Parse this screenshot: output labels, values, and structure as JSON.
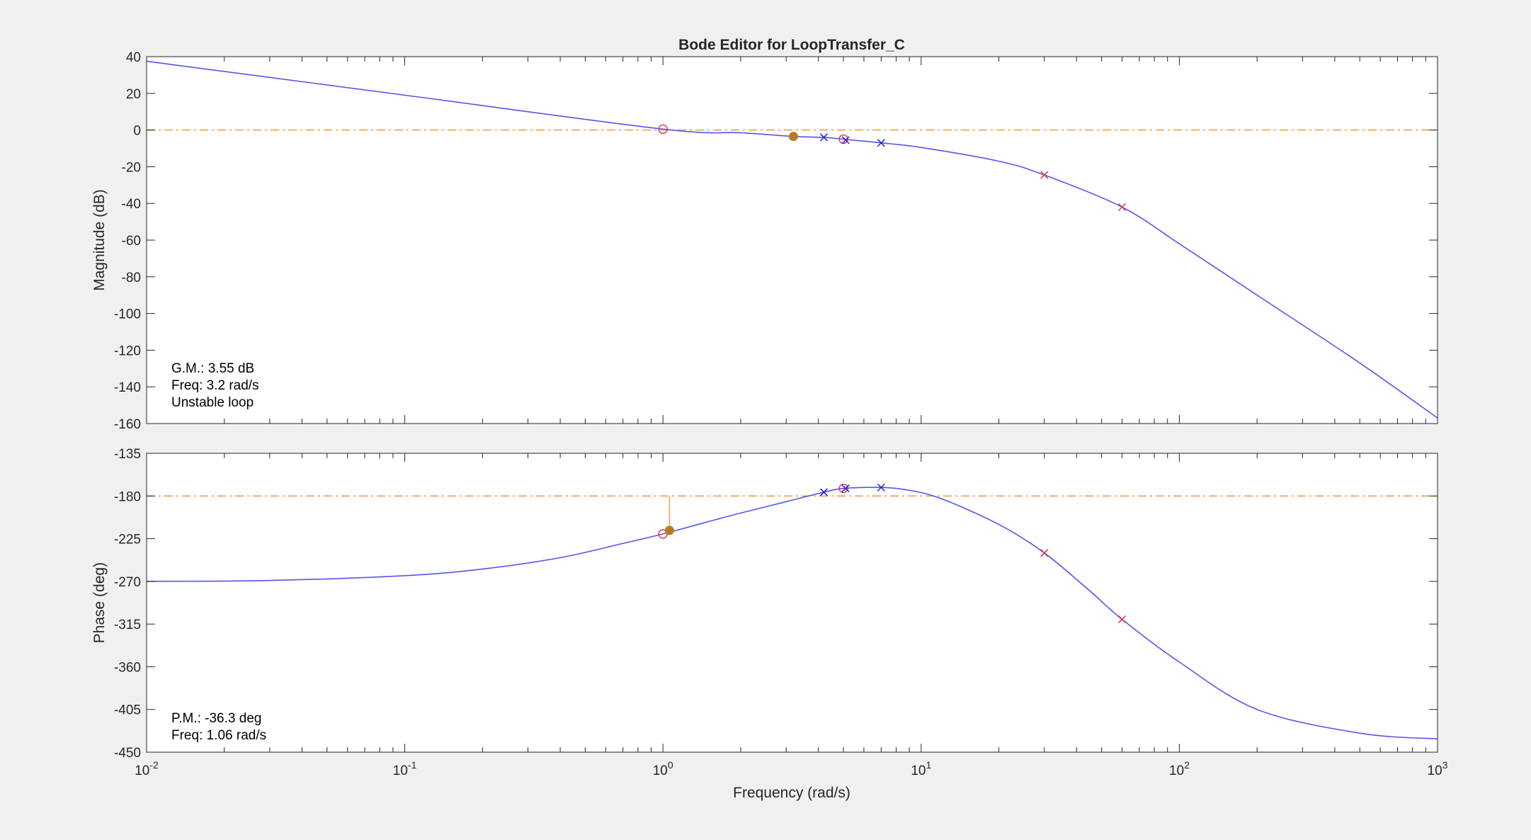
{
  "title": "Bode Editor for LoopTransfer_C",
  "xlabel": "Frequency (rad/s)",
  "colors": {
    "background": "#f0f0f0",
    "axes_bg": "#ffffff",
    "axis": "#262626",
    "curve": "#5555ee",
    "reference": "#eda040",
    "pole_zero_red": "#e0304a",
    "pole_zero_blue": "#1f1fd6",
    "marker_fill": "#b87a1e"
  },
  "chart_data": [
    {
      "type": "line",
      "panel": "magnitude",
      "title": "Bode Editor for LoopTransfer_C",
      "ylabel": "Magnitude (dB)",
      "xlabel": "",
      "xscale": "log",
      "xlim": [
        0.01,
        1000
      ],
      "ylim": [
        -160,
        40
      ],
      "yticks": [
        40,
        20,
        0,
        -20,
        -40,
        -60,
        -80,
        -100,
        -120,
        -140,
        -160
      ],
      "grid": false,
      "series": [
        {
          "x": [
            0.01,
            0.1,
            1,
            2,
            3.2,
            4.2,
            5,
            7,
            10,
            20,
            30,
            60,
            100,
            200,
            500,
            1000
          ],
          "y": [
            37.5,
            19,
            0.5,
            -1.5,
            -3.5,
            -4,
            -5,
            -7,
            -9.5,
            -17,
            -24.5,
            -42,
            -62,
            -90,
            -127,
            -157
          ]
        }
      ],
      "reference_line": {
        "y": 0,
        "style": "dash-dot"
      },
      "markers": [
        {
          "kind": "zero",
          "color": "red",
          "x": 1,
          "y": 0.5
        },
        {
          "kind": "zero",
          "color": "red",
          "x": 5,
          "y": -5
        },
        {
          "kind": "pole",
          "color": "blue",
          "x": 4.2,
          "y": -4
        },
        {
          "kind": "pole",
          "color": "blue",
          "x": 5.1,
          "y": -5.5
        },
        {
          "kind": "pole",
          "color": "blue",
          "x": 7,
          "y": -7
        },
        {
          "kind": "pole",
          "color": "red",
          "x": 30,
          "y": -24.5
        },
        {
          "kind": "pole",
          "color": "red",
          "x": 60,
          "y": -42
        },
        {
          "kind": "margin",
          "color": "orange",
          "x": 3.2,
          "y": -3.5
        }
      ],
      "annotation": [
        "G.M.: 3.55 dB",
        "Freq: 3.2 rad/s",
        "Unstable loop"
      ]
    },
    {
      "type": "line",
      "panel": "phase",
      "ylabel": "Phase (deg)",
      "xlabel": "Frequency (rad/s)",
      "xscale": "log",
      "xlim": [
        0.01,
        1000
      ],
      "ylim": [
        -450,
        -135
      ],
      "yticks": [
        -135,
        -180,
        -225,
        -270,
        -315,
        -360,
        -405,
        -450
      ],
      "xtick_labels": [
        "10^-2",
        "10^-1",
        "10^0",
        "10^1",
        "10^2",
        "10^3"
      ],
      "grid": false,
      "series": [
        {
          "x": [
            0.01,
            0.03,
            0.1,
            0.2,
            0.4,
            0.7,
            1,
            1.5,
            2,
            3,
            4.2,
            5,
            7,
            9,
            12,
            20,
            30,
            45,
            60,
            100,
            200,
            500,
            1000
          ],
          "y": [
            -270,
            -269,
            -264,
            -257,
            -245,
            -230,
            -220,
            -207,
            -198,
            -186,
            -176,
            -172,
            -171,
            -174,
            -183,
            -210,
            -240,
            -280,
            -310,
            -355,
            -405,
            -430,
            -436
          ]
        }
      ],
      "reference_line": {
        "y": -180,
        "style": "dash-dot"
      },
      "markers": [
        {
          "kind": "zero",
          "color": "red",
          "x": 1,
          "y": -220
        },
        {
          "kind": "zero",
          "color": "red",
          "x": 5,
          "y": -172
        },
        {
          "kind": "pole",
          "color": "blue",
          "x": 4.2,
          "y": -176
        },
        {
          "kind": "pole",
          "color": "blue",
          "x": 5.1,
          "y": -172
        },
        {
          "kind": "pole",
          "color": "blue",
          "x": 7,
          "y": -171
        },
        {
          "kind": "pole",
          "color": "red",
          "x": 30,
          "y": -240
        },
        {
          "kind": "pole",
          "color": "red",
          "x": 60,
          "y": -310
        },
        {
          "kind": "margin",
          "color": "orange",
          "x": 1.06,
          "y": -216.3
        }
      ],
      "annotation": [
        "P.M.: -36.3 deg",
        "Freq: 1.06 rad/s"
      ]
    }
  ]
}
